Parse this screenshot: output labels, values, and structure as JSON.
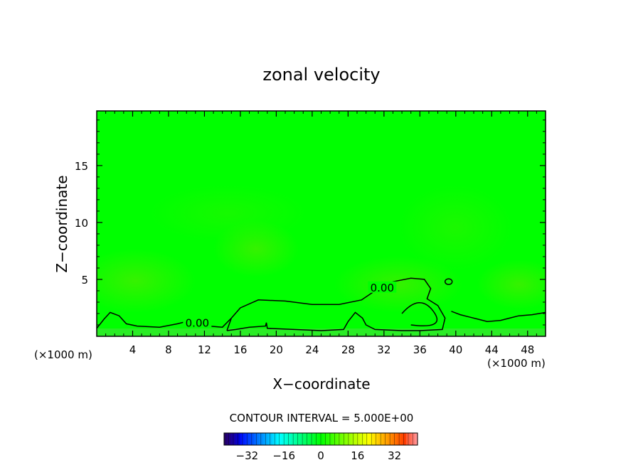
{
  "chart_data": {
    "type": "contour",
    "title": "zonal velocity",
    "xlabel": "X−coordinate",
    "ylabel": "Z−coordinate",
    "x_unit_left": "(×1000 m)",
    "x_unit_right": "(×1000 m)",
    "xlim": [
      0,
      50
    ],
    "ylim": [
      0,
      19.8
    ],
    "x_ticks": [
      4,
      8,
      12,
      16,
      20,
      24,
      28,
      32,
      36,
      40,
      44,
      48
    ],
    "y_ticks": [
      5,
      10,
      15
    ],
    "contour_labels": [
      {
        "text": "0.00",
        "x": 31.8,
        "z": 4.2
      },
      {
        "text": "0.00",
        "x": 11.2,
        "z": 1.1
      }
    ],
    "zero_contour_main": [
      [
        14.5,
        0.5
      ],
      [
        15,
        1.6
      ],
      [
        16,
        2.5
      ],
      [
        18,
        3.2
      ],
      [
        21,
        3.1
      ],
      [
        24,
        2.8
      ],
      [
        27,
        2.8
      ],
      [
        29.5,
        3.2
      ],
      [
        31,
        4.0
      ],
      [
        33,
        4.8
      ],
      [
        35,
        5.1
      ],
      [
        36.5,
        5.0
      ],
      [
        37.2,
        4.2
      ],
      [
        36.8,
        3.3
      ],
      [
        38,
        2.7
      ],
      [
        38.8,
        1.6
      ],
      [
        38.5,
        0.6
      ],
      [
        36,
        0.5
      ],
      [
        34,
        0.5
      ],
      [
        31,
        0.6
      ],
      [
        30,
        1.0
      ],
      [
        29.6,
        1.6
      ],
      [
        28.8,
        2.1
      ],
      [
        28,
        1.3
      ],
      [
        27.5,
        0.6
      ],
      [
        25,
        0.5
      ],
      [
        22,
        0.6
      ],
      [
        19,
        0.7
      ],
      [
        18.9,
        1.2
      ],
      [
        18.8,
        0.9
      ],
      [
        17,
        0.8
      ],
      [
        15.5,
        0.6
      ],
      [
        14.5,
        0.5
      ]
    ],
    "zero_contour_bottom": [
      [
        0,
        0.7
      ],
      [
        0.8,
        1.5
      ],
      [
        1.5,
        2.1
      ],
      [
        2.5,
        1.8
      ],
      [
        3.3,
        1.1
      ],
      [
        4.5,
        0.9
      ],
      [
        7,
        0.8
      ],
      [
        9,
        1.1
      ],
      [
        10,
        1.3
      ],
      [
        10.6,
        1.1
      ],
      [
        12.5,
        0.9
      ],
      [
        14,
        0.8
      ],
      [
        15,
        1.6
      ]
    ],
    "zero_contour_right": [
      [
        39.5,
        2.2
      ],
      [
        40.5,
        1.9
      ],
      [
        41.5,
        1.7
      ],
      [
        42.5,
        1.5
      ],
      [
        43.5,
        1.3
      ],
      [
        45,
        1.4
      ],
      [
        46,
        1.6
      ],
      [
        47,
        1.8
      ],
      [
        48.5,
        1.9
      ],
      [
        50,
        2.1
      ]
    ],
    "colorbar": {
      "title": "CONTOUR INTERVAL = 5.000E+00",
      "tick_labels": [
        "−32",
        "−16",
        "0",
        "16",
        "32"
      ],
      "tick_values": [
        -32,
        -16,
        0,
        16,
        32
      ],
      "range": [
        -42,
        42
      ],
      "colormap": "rainbow"
    },
    "field_color": "#00ff00"
  }
}
